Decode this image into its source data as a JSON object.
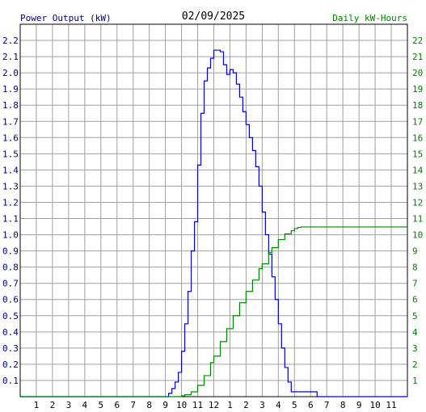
{
  "chart_data": {
    "type": "line",
    "title": "02/09/2025",
    "left_axis_label": "Power Output (kW)",
    "right_axis_label": "Daily kW-Hours",
    "x_tick_labels": [
      "1",
      "2",
      "3",
      "4",
      "5",
      "6",
      "7",
      "8",
      "9",
      "10",
      "11",
      "12",
      "1",
      "2",
      "3",
      "4",
      "5",
      "6",
      "7",
      "8",
      "9",
      "10",
      "11"
    ],
    "x_range_hours": [
      0,
      24
    ],
    "left_ylim": [
      0,
      2.3
    ],
    "left_ticks": [
      "0.1",
      "0.2",
      "0.3",
      "0.4",
      "0.5",
      "0.6",
      "0.7",
      "0.8",
      "0.9",
      "1.0",
      "1.1",
      "1.2",
      "1.3",
      "1.4",
      "1.5",
      "1.6",
      "1.7",
      "1.8",
      "1.9",
      "2.0",
      "2.1",
      "2.2"
    ],
    "right_ylim": [
      0,
      23
    ],
    "right_ticks": [
      "1",
      "2",
      "3",
      "4",
      "5",
      "6",
      "7",
      "8",
      "9",
      "10",
      "11",
      "12",
      "13",
      "14",
      "15",
      "16",
      "17",
      "18",
      "19",
      "20",
      "21",
      "22"
    ],
    "grid": true,
    "colors": {
      "power": "#0000cc",
      "energy": "#008800",
      "grid": "#a0a0a0",
      "left_text": "#000080",
      "right_text": "#008000",
      "title_text": "#000000"
    },
    "series": [
      {
        "name": "Power Output (kW)",
        "axis": "left",
        "x": [
          0,
          9.0,
          9.2,
          9.4,
          9.6,
          9.8,
          10.0,
          10.2,
          10.4,
          10.6,
          10.8,
          11.0,
          11.2,
          11.4,
          11.6,
          11.8,
          12.0,
          12.2,
          12.4,
          12.6,
          12.8,
          13.0,
          13.2,
          13.4,
          13.6,
          13.8,
          14.0,
          14.2,
          14.4,
          14.6,
          14.8,
          15.0,
          15.2,
          15.4,
          15.6,
          15.8,
          16.0,
          16.2,
          16.4,
          16.6,
          16.8,
          17.0,
          17.2,
          17.4,
          17.6,
          17.8,
          18.0,
          18.2,
          18.4,
          18.6,
          19.0,
          19.2,
          24
        ],
        "y": [
          0,
          0,
          0.02,
          0.05,
          0.09,
          0.15,
          0.28,
          0.45,
          0.65,
          0.9,
          1.08,
          1.43,
          1.75,
          1.95,
          2.03,
          2.09,
          2.14,
          2.14,
          2.13,
          2.05,
          1.99,
          2.02,
          2.0,
          1.93,
          1.85,
          1.76,
          1.68,
          1.6,
          1.52,
          1.42,
          1.3,
          1.14,
          1.0,
          0.88,
          0.74,
          0.6,
          0.45,
          0.3,
          0.18,
          0.09,
          0.03,
          0.03,
          0.03,
          0.03,
          0.03,
          0.03,
          0.03,
          0.03,
          0.0,
          0.0,
          0.0,
          0.0,
          0.0
        ]
      },
      {
        "name": "Daily kW-Hours",
        "axis": "right",
        "x": [
          0,
          9.6,
          10.0,
          10.2,
          10.6,
          11.0,
          11.4,
          11.8,
          12.0,
          12.4,
          12.8,
          13.2,
          13.6,
          14.0,
          14.4,
          14.8,
          15.0,
          15.4,
          15.6,
          16.0,
          16.4,
          16.8,
          17.0,
          17.2,
          17.4,
          17.6,
          17.8,
          18.0,
          24
        ],
        "y": [
          0,
          0,
          0.05,
          0.12,
          0.3,
          0.7,
          1.3,
          2.1,
          2.5,
          3.4,
          4.2,
          5.0,
          5.8,
          6.5,
          7.2,
          7.9,
          8.2,
          8.9,
          9.2,
          9.7,
          10.05,
          10.25,
          10.38,
          10.45,
          10.48,
          10.48,
          10.48,
          10.48,
          10.48
        ]
      }
    ]
  }
}
